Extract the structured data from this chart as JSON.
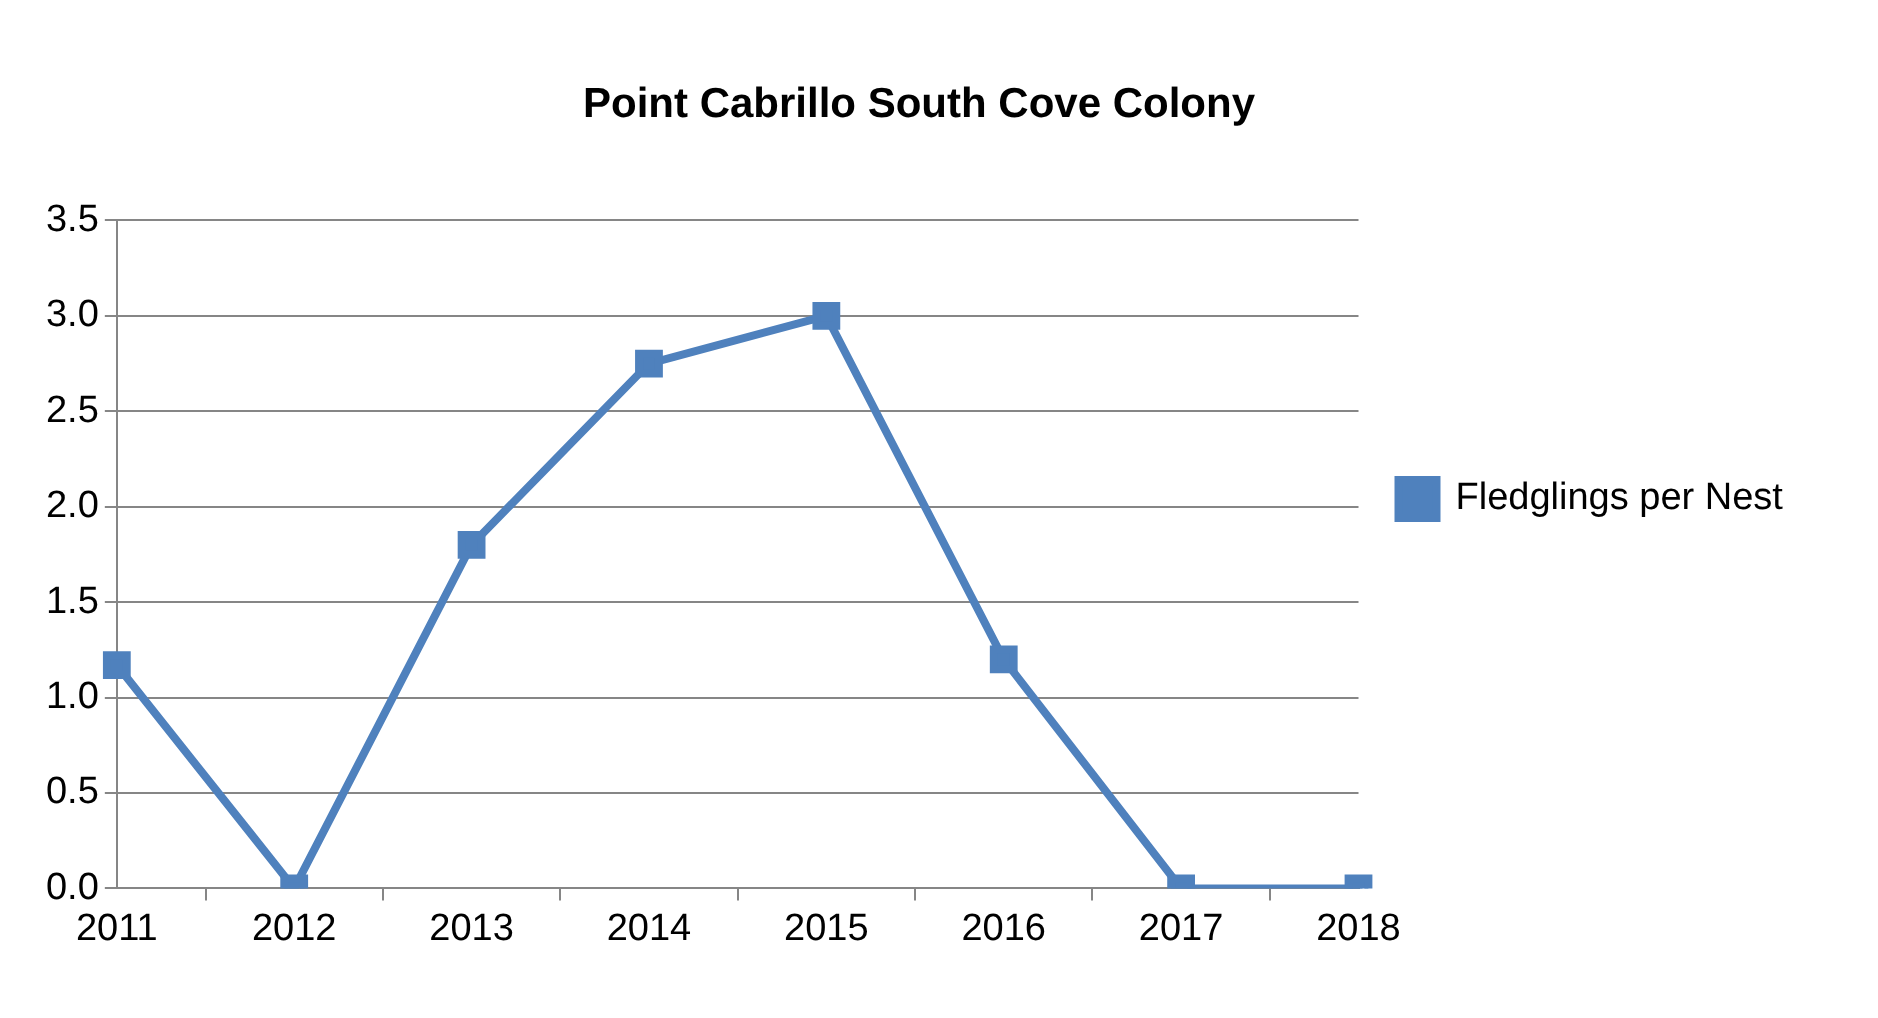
{
  "chart_data": {
    "type": "line",
    "title": "Point Cabrillo South Cove Colony",
    "categories": [
      "2011",
      "2012",
      "2013",
      "2014",
      "2015",
      "2016",
      "2017",
      "2018"
    ],
    "series": [
      {
        "name": "Fledglings per Nest",
        "color": "#4f81bd",
        "values": [
          1.17,
          0,
          1.8,
          2.75,
          3.0,
          1.2,
          0,
          0
        ]
      }
    ],
    "ylim": [
      0,
      3.5
    ],
    "yticks": [
      {
        "value": 0,
        "label": "0.0"
      },
      {
        "value": 0.5,
        "label": "0.5"
      },
      {
        "value": 1,
        "label": "1.0"
      },
      {
        "value": 1.5,
        "label": "1.5"
      },
      {
        "value": 2,
        "label": "2.0"
      },
      {
        "value": 2.5,
        "label": "2.5"
      },
      {
        "value": 3,
        "label": "3.0"
      },
      {
        "value": 3.5,
        "label": "3.5"
      }
    ],
    "grid": "y",
    "legend": "right",
    "marker": "square",
    "line_style": "solid"
  }
}
